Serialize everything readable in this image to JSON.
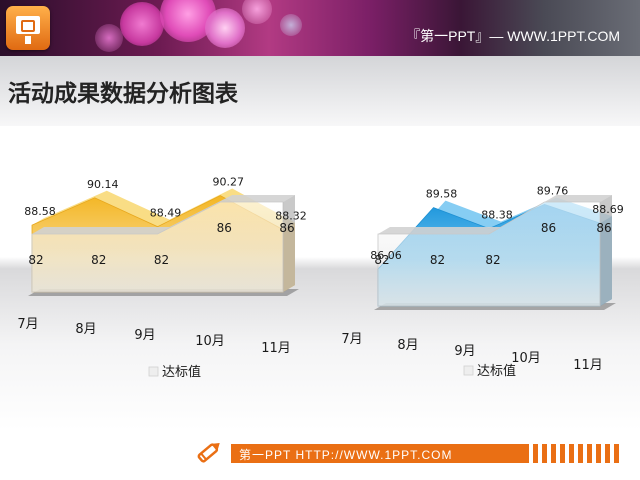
{
  "header": {
    "text": "『第一PPT』— WWW.1PPT.COM"
  },
  "page_title": "活动成果数据分析图表",
  "footer": {
    "text": "第一PPT HTTP://WWW.1PPT.COM"
  },
  "colors": {
    "accent_orange": "#ea6f14",
    "series_gold": "#f2c13f",
    "series_blue": "#3fa8dd"
  },
  "icons": [
    "ppt-logo-icon",
    "pencil-icon"
  ],
  "chart_data": [
    {
      "type": "area",
      "categories": [
        "7月",
        "8月",
        "9月",
        "10月",
        "11月"
      ],
      "series": [
        {
          "values": [
            88.58,
            90.14,
            88.49,
            90.27,
            88.32
          ],
          "color": "#f2c13f"
        },
        {
          "name": "达标值",
          "values": [
            82,
            82,
            82,
            86,
            86
          ],
          "color": "#e6e6e6"
        }
      ]
    },
    {
      "type": "area",
      "categories": [
        "7月",
        "8月",
        "9月",
        "10月",
        "11月"
      ],
      "series": [
        {
          "values": [
            86.06,
            89.58,
            88.38,
            89.76,
            88.69
          ],
          "color": "#3fa8dd"
        },
        {
          "name": "达标值",
          "values": [
            82,
            82,
            82,
            86,
            86
          ],
          "color": "#e6e6e6"
        }
      ]
    }
  ]
}
